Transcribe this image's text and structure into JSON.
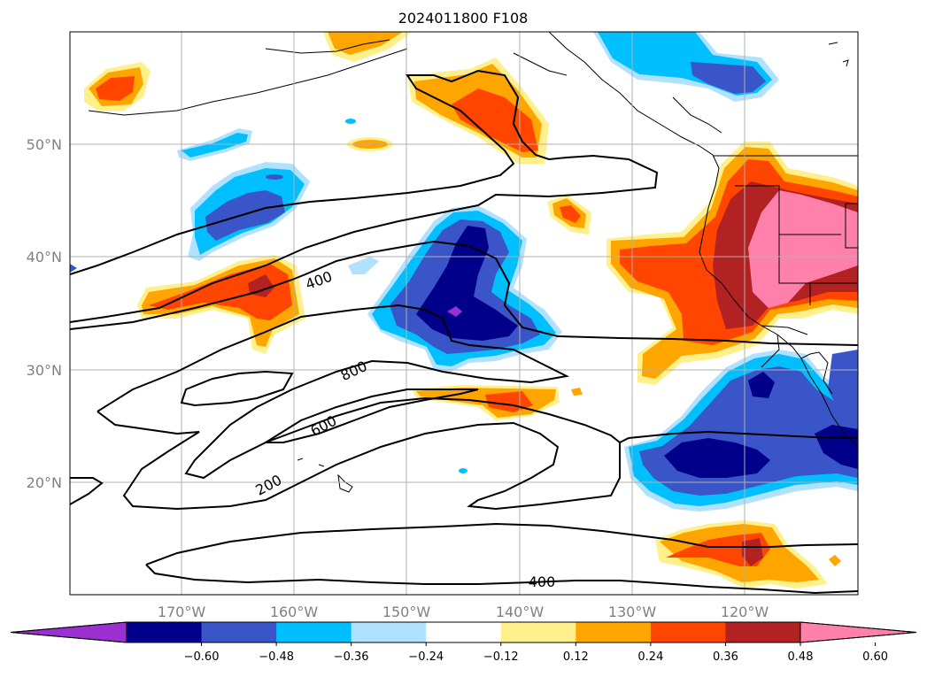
{
  "title": "2024011800 F108",
  "lat_labels": [
    "50°N",
    "40°N",
    "30°N",
    "20°N"
  ],
  "lon_labels": [
    "170°W",
    "160°W",
    "150°W",
    "140°W",
    "130°W",
    "120°W"
  ],
  "colorbar": {
    "tick_labels": [
      "−0.60",
      "−0.48",
      "−0.36",
      "−0.24",
      "−0.12",
      "0.12",
      "0.24",
      "0.36",
      "0.48",
      "0.60"
    ],
    "colors": [
      "#9b30d0",
      "#00008b",
      "#3a55c8",
      "#00bfff",
      "#b0e2ff",
      "#ffffff",
      "#fff08c",
      "#ffa500",
      "#ff4500",
      "#b22222",
      "#ff80aa"
    ]
  },
  "contour_labels": [
    "400",
    "800",
    "600",
    "200",
    "400"
  ],
  "colors": {
    "anomaly_pos_1": "#fff08c",
    "anomaly_pos_2": "#ffa500",
    "anomaly_pos_3": "#ff4500",
    "anomaly_pos_4": "#b22222",
    "anomaly_pos_5": "#ff80aa",
    "anomaly_neg_1": "#b0e2ff",
    "anomaly_neg_2": "#00bfff",
    "anomaly_neg_3": "#3a55c8",
    "anomaly_neg_4": "#00008b",
    "anomaly_neg_5": "#9b30d0",
    "gridline": "#b0b0b0",
    "contour": "#000000"
  }
}
